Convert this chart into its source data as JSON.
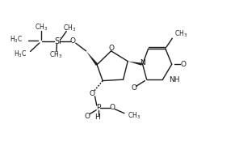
{
  "background_color": "#ffffff",
  "line_color": "#1a1a1a",
  "line_width": 1.0,
  "font_size": 6.5,
  "figsize": [
    2.91,
    1.85
  ],
  "dpi": 100,
  "xlim": [
    0,
    10
  ],
  "ylim": [
    0,
    6.5
  ]
}
